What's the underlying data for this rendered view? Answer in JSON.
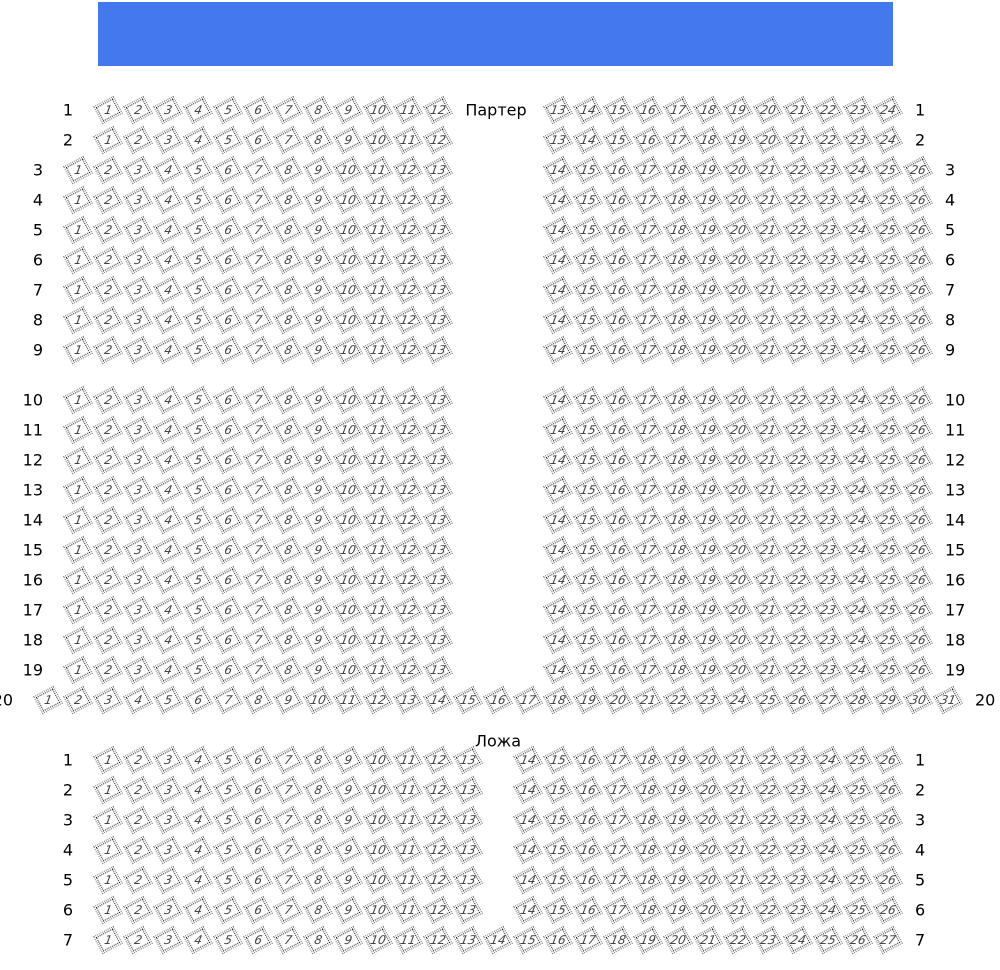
{
  "stage": {
    "color": "#4479ee"
  },
  "sections": [
    {
      "name": "Партер",
      "rows": [
        {
          "label": "1",
          "left": [
            1,
            12
          ],
          "right": [
            13,
            24
          ]
        },
        {
          "label": "2",
          "left": [
            1,
            12
          ],
          "right": [
            13,
            24
          ]
        },
        {
          "label": "3",
          "left": [
            1,
            13
          ],
          "right": [
            14,
            26
          ]
        },
        {
          "label": "4",
          "left": [
            1,
            13
          ],
          "right": [
            14,
            26
          ]
        },
        {
          "label": "5",
          "left": [
            1,
            13
          ],
          "right": [
            14,
            26
          ]
        },
        {
          "label": "6",
          "left": [
            1,
            13
          ],
          "right": [
            14,
            26
          ]
        },
        {
          "label": "7",
          "left": [
            1,
            13
          ],
          "right": [
            14,
            26
          ]
        },
        {
          "label": "8",
          "left": [
            1,
            13
          ],
          "right": [
            14,
            26
          ]
        },
        {
          "label": "9",
          "left": [
            1,
            13
          ],
          "right": [
            14,
            26
          ]
        },
        {
          "label": "10",
          "left": [
            1,
            13
          ],
          "right": [
            14,
            26
          ]
        },
        {
          "label": "11",
          "left": [
            1,
            13
          ],
          "right": [
            14,
            26
          ]
        },
        {
          "label": "12",
          "left": [
            1,
            13
          ],
          "right": [
            14,
            26
          ]
        },
        {
          "label": "13",
          "left": [
            1,
            13
          ],
          "right": [
            14,
            26
          ]
        },
        {
          "label": "14",
          "left": [
            1,
            13
          ],
          "right": [
            14,
            26
          ]
        },
        {
          "label": "15",
          "left": [
            1,
            13
          ],
          "right": [
            14,
            26
          ]
        },
        {
          "label": "16",
          "left": [
            1,
            13
          ],
          "right": [
            14,
            26
          ]
        },
        {
          "label": "17",
          "left": [
            1,
            13
          ],
          "right": [
            14,
            26
          ]
        },
        {
          "label": "18",
          "left": [
            1,
            13
          ],
          "right": [
            14,
            26
          ]
        },
        {
          "label": "19",
          "left": [
            1,
            13
          ],
          "right": [
            14,
            26
          ]
        },
        {
          "label": "20",
          "all": [
            1,
            31
          ]
        }
      ]
    },
    {
      "name": "Ложа",
      "rows": [
        {
          "label": "1",
          "left": [
            1,
            13
          ],
          "right": [
            14,
            26
          ]
        },
        {
          "label": "2",
          "left": [
            1,
            13
          ],
          "right": [
            14,
            26
          ]
        },
        {
          "label": "3",
          "left": [
            1,
            13
          ],
          "right": [
            14,
            26
          ]
        },
        {
          "label": "4",
          "left": [
            1,
            13
          ],
          "right": [
            14,
            26
          ]
        },
        {
          "label": "5",
          "left": [
            1,
            13
          ],
          "right": [
            14,
            26
          ]
        },
        {
          "label": "6",
          "left": [
            1,
            13
          ],
          "right": [
            14,
            26
          ]
        },
        {
          "label": "7",
          "all": [
            1,
            27
          ]
        }
      ]
    }
  ]
}
